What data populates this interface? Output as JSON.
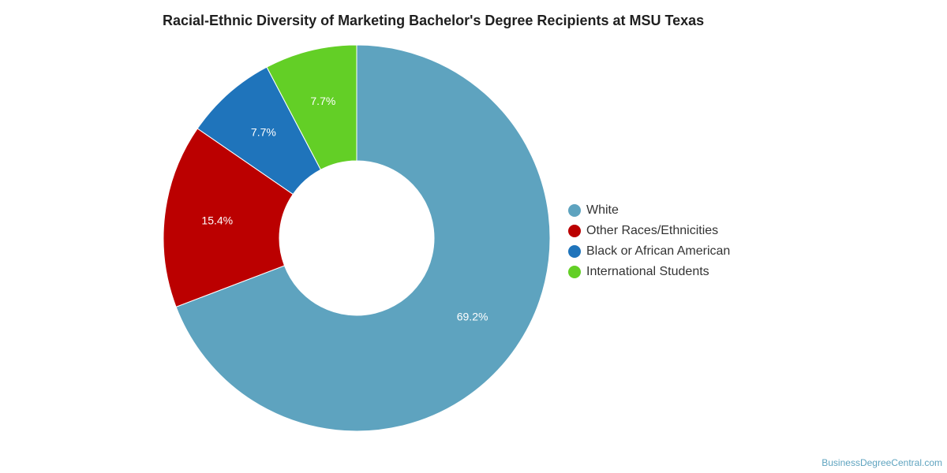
{
  "chart_data": {
    "type": "pie",
    "variant": "donut",
    "title": "Racial-Ethnic Diversity of Marketing Bachelor's Degree Recipients at MSU Texas",
    "slices": [
      {
        "label": "White",
        "value": 69.2,
        "display": "69.2%",
        "color": "#5ea3bf"
      },
      {
        "label": "Other Races/Ethnicities",
        "value": 15.4,
        "display": "15.4%",
        "color": "#bb0000"
      },
      {
        "label": "Black or African American",
        "value": 7.7,
        "display": "7.7%",
        "color": "#1f74bb"
      },
      {
        "label": "International Students",
        "value": 7.7,
        "display": "7.7%",
        "color": "#63cf26"
      }
    ],
    "legend_position": "right"
  },
  "watermark": "BusinessDegreeCentral.com"
}
